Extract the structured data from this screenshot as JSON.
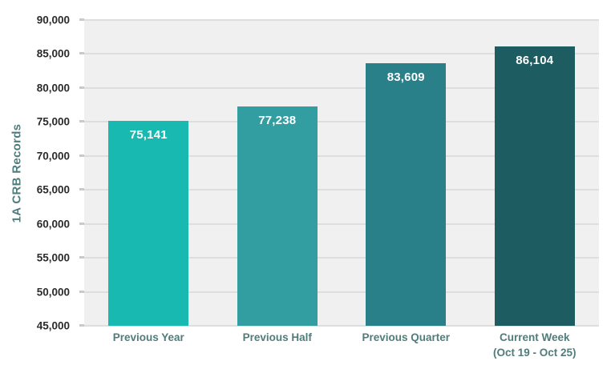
{
  "chart_data": {
    "type": "bar",
    "title": "",
    "xlabel": "",
    "ylabel": "1A CRB Records",
    "categories": [
      "Previous Year",
      "Previous Half",
      "Previous Quarter",
      "Current Week\n(Oct 19 - Oct 25)"
    ],
    "values": [
      75141,
      77238,
      83609,
      86104
    ],
    "value_labels": [
      "75,141",
      "77,238",
      "83,609",
      "86,104"
    ],
    "ylim": [
      45000,
      90000
    ],
    "ytick_step": 5000,
    "ytick_labels": [
      "45,000",
      "50,000",
      "55,000",
      "60,000",
      "65,000",
      "70,000",
      "75,000",
      "80,000",
      "85,000",
      "90,000"
    ],
    "grid": true,
    "legend": false,
    "bar_colors": [
      "#18B9B1",
      "#339EA1",
      "#2A8089",
      "#1D5C60"
    ],
    "colors": {
      "page_background": "#FFFFFF",
      "plot_background": "#F0F0F1",
      "gridline": "#DEDEE0",
      "tick_mark": "#C9C9CB",
      "y_tick_label": "#2B2B2B",
      "x_label": "#507C7B",
      "y_axis_title": "#507C7B",
      "value_label": "#FFFFFF"
    }
  }
}
